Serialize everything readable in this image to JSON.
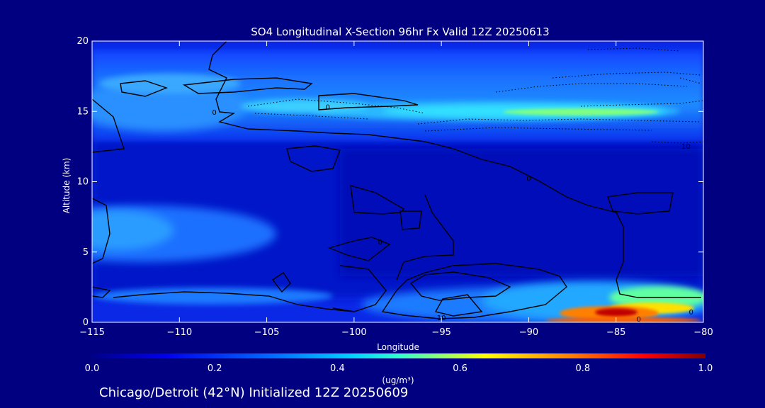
{
  "chart_data": {
    "type": "heatmap",
    "title": "SO4 Longitudinal X-Section 96hr  Fx Valid 12Z 20250613",
    "xlabel": "Longitude",
    "ylabel": "Altitude (km)",
    "xlim": [
      -115,
      -80
    ],
    "ylim": [
      0,
      20
    ],
    "xticks": [
      -115,
      -110,
      -105,
      -100,
      -95,
      -90,
      -85,
      -80
    ],
    "xtick_labels": [
      "−115",
      "−110",
      "−105",
      "−100",
      "−95",
      "−90",
      "−85",
      "−80"
    ],
    "yticks": [
      0,
      5,
      10,
      15,
      20
    ],
    "colorbar": {
      "min": 0.0,
      "max": 1.0,
      "ticks": [
        "0.0",
        "0.2",
        "0.4",
        "0.6",
        "0.8",
        "1.0"
      ],
      "units": "(ug/m³)",
      "colormap": "rainbow"
    },
    "contour_labels": [
      {
        "text": "0",
        "lon": -108,
        "alt": 14.9
      },
      {
        "text": "0",
        "lon": -101.5,
        "alt": 15.3
      },
      {
        "text": "0",
        "lon": -98.5,
        "alt": 5.7
      },
      {
        "text": "0",
        "lon": -90,
        "alt": 10.2
      },
      {
        "text": "0",
        "lon": -83.7,
        "alt": 0.2
      },
      {
        "text": "0",
        "lon": -80.7,
        "alt": 0.7
      },
      {
        "text": "10",
        "lon": -95,
        "alt": 0.3
      },
      {
        "text": "10",
        "lon": -81,
        "alt": 12.5
      }
    ],
    "grid": false
  },
  "footer": "Chicago/Detroit (42°N) Initialized 12Z 20250609"
}
